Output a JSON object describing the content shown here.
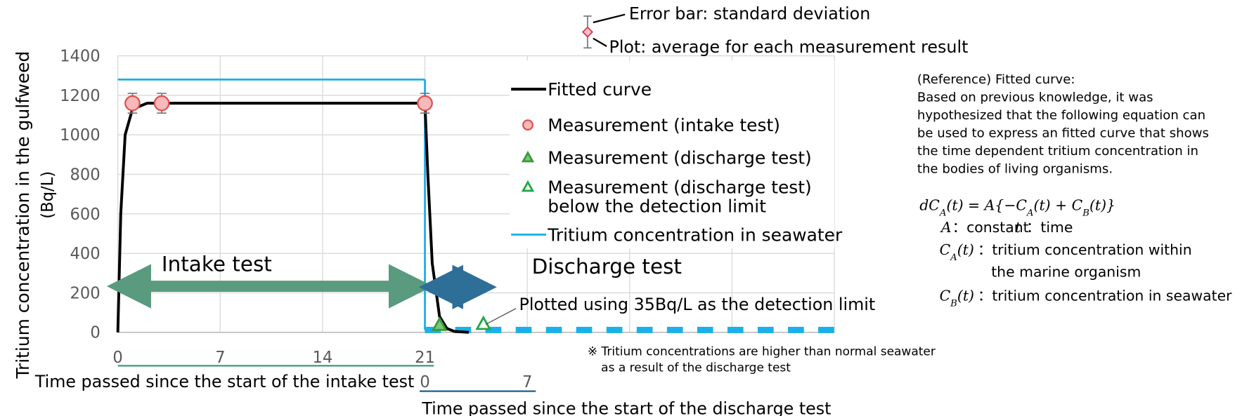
{
  "chart_data": {
    "type": "scatter",
    "ylabel": [
      "Tritium concentration in the gulfweed",
      "(Bq/L)"
    ],
    "xlabel": "Time passed since the start of the intake test",
    "x2label": "Time passed since the start of the discharge test",
    "xlim": [
      0,
      49
    ],
    "xticks": [
      0,
      7,
      14,
      21
    ],
    "xgrid": [
      0,
      7,
      14,
      21,
      28,
      35,
      42,
      49
    ],
    "x2lim": [
      -21,
      28
    ],
    "x2ticks": [
      0,
      7
    ],
    "ylim": [
      0,
      1400
    ],
    "yticks": [
      0,
      200,
      400,
      600,
      800,
      1000,
      1200,
      1400
    ],
    "grid": true,
    "series": [
      {
        "name": "Fitted curve",
        "kind": "line",
        "color": "#000000",
        "x": [
          0,
          0.2,
          0.5,
          1,
          2,
          21,
          21.2,
          21.5,
          22,
          22.5,
          23,
          24
        ],
        "values": [
          0,
          600,
          1000,
          1130,
          1160,
          1160,
          800,
          350,
          80,
          20,
          5,
          0
        ]
      },
      {
        "name": "Measurement (intake test)",
        "kind": "circle",
        "color": "#e05050",
        "fill": "#f7b9b9",
        "x": [
          1,
          3,
          21
        ],
        "values": [
          1160,
          1160,
          1160
        ],
        "errors": [
          50,
          50,
          50
        ]
      },
      {
        "name": "Measurement (discharge test)",
        "kind": "triangle",
        "color": "#3a9a3a",
        "fill": "#78c878",
        "x": [
          22
        ],
        "values": [
          30
        ]
      },
      {
        "name": [
          "Measurement (discharge test)",
          "below the detection limit"
        ],
        "kind": "triangle",
        "color": "#1fa847",
        "fill": "#ffffff",
        "x": [
          25
        ],
        "values": [
          35
        ]
      },
      {
        "name": "Tritium concentration in seawater",
        "kind": "step",
        "color": "#1ab0e8",
        "x": [
          0,
          21,
          21,
          49
        ],
        "values": [
          1280,
          1280,
          12,
          12
        ],
        "segment_styles": [
          "solid",
          "solid",
          "dashed"
        ]
      }
    ],
    "annotations": {
      "error_bar": "Error bar: standard deviation",
      "plot": "Plot: average for each measurement result",
      "intake": "Intake test",
      "discharge": "Discharge test",
      "detection": "Plotted using 35Bq/L as the detection limit",
      "note": [
        "※ Tritium concentrations are higher than normal seawater",
        "as a result of the discharge test"
      ]
    },
    "reference": {
      "lines": [
        "(Reference) Fitted curve:",
        "Based on previous knowledge, it was",
        "hypothesized that the following equation can",
        "be used to express an fitted curve that shows",
        "the time dependent tritium concentration in",
        "the bodies of living organisms."
      ],
      "equation": [
        "dC",
        "A",
        "(t) = A{−C",
        "A",
        "(t) + C",
        "B",
        "(t)}"
      ],
      "definitions": [
        {
          "symbol": [
            "A"
          ],
          "text": [
            "：constant"
          ]
        },
        {
          "symbol": [
            "t"
          ],
          "text": [
            "：time"
          ]
        },
        {
          "symbol": [
            "C",
            "A",
            "(t)"
          ],
          "text": [
            "：tritium concentration within",
            "the marine organism"
          ]
        },
        {
          "symbol": [
            "C",
            "B",
            "(t)"
          ],
          "text": [
            "：tritium concentration in seawater"
          ]
        }
      ]
    }
  }
}
